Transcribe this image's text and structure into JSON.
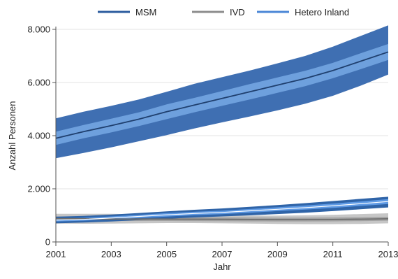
{
  "chart_data": {
    "type": "area",
    "xlabel": "Jahr",
    "ylabel": "Anzahl Personen",
    "xlim": [
      2001,
      2013
    ],
    "ylim": [
      0,
      8000
    ],
    "x_ticks": [
      {
        "value": 2001,
        "label": "2001"
      },
      {
        "value": 2003,
        "label": "2003"
      },
      {
        "value": 2005,
        "label": "2005"
      },
      {
        "value": 2007,
        "label": "2007"
      },
      {
        "value": 2009,
        "label": "2009"
      },
      {
        "value": 2011,
        "label": "2011"
      },
      {
        "value": 2013,
        "label": "2013"
      }
    ],
    "y_ticks": [
      {
        "value": 0,
        "label": "0"
      },
      {
        "value": 2000,
        "label": "2.000"
      },
      {
        "value": 4000,
        "label": "4.000"
      },
      {
        "value": 6000,
        "label": "6.000"
      },
      {
        "value": 8000,
        "label": "8.000"
      }
    ],
    "grid": "horizontal",
    "legend_position": "top",
    "x": [
      2001,
      2002,
      2003,
      2004,
      2005,
      2006,
      2007,
      2008,
      2009,
      2010,
      2011,
      2012,
      2013
    ],
    "series": [
      {
        "name": "MSM",
        "color": "#2b5c9e",
        "outer_band_color": "#3f6fb2",
        "inner_band_color": "#6ea0dd",
        "values": [
          3900,
          4150,
          4380,
          4620,
          4900,
          5150,
          5400,
          5650,
          5900,
          6150,
          6450,
          6800,
          7150
        ],
        "outer_lower": [
          3150,
          3350,
          3560,
          3790,
          4020,
          4270,
          4500,
          4720,
          4950,
          5200,
          5500,
          5880,
          6300
        ],
        "outer_upper": [
          4650,
          4900,
          5120,
          5360,
          5650,
          5950,
          6200,
          6450,
          6720,
          7000,
          7350,
          7750,
          8150
        ],
        "inner_lower": [
          3650,
          3900,
          4120,
          4360,
          4620,
          4880,
          5120,
          5360,
          5610,
          5860,
          6160,
          6500,
          6850
        ],
        "inner_upper": [
          4150,
          4400,
          4640,
          4880,
          5180,
          5420,
          5680,
          5940,
          6190,
          6440,
          6740,
          7100,
          7450
        ]
      },
      {
        "name": "IVD",
        "color": "#8c8c8c",
        "outer_band_color": "#b3b3b3",
        "inner_band_color": "#9c9c9c",
        "values": [
          880,
          870,
          860,
          860,
          860,
          855,
          850,
          845,
          840,
          840,
          845,
          855,
          870
        ],
        "outer_lower": [
          690,
          685,
          690,
          700,
          710,
          710,
          700,
          690,
          680,
          670,
          670,
          680,
          700
        ],
        "outer_upper": [
          1060,
          1060,
          1060,
          1040,
          1020,
          1010,
          1000,
          990,
          990,
          1000,
          1020,
          1050,
          1080
        ],
        "inner_lower": [
          800,
          795,
          790,
          790,
          790,
          785,
          780,
          775,
          770,
          770,
          775,
          785,
          800
        ],
        "inner_upper": [
          960,
          950,
          940,
          935,
          935,
          930,
          925,
          920,
          915,
          915,
          920,
          930,
          945
        ]
      },
      {
        "name": "Hetero Inland",
        "color": "#4a86d6",
        "outer_band_color": "#2f64a8",
        "inner_band_color": "#5f9ae4",
        "values": [
          820,
          850,
          900,
          960,
          1020,
          1070,
          1110,
          1170,
          1230,
          1290,
          1360,
          1440,
          1520
        ],
        "outer_lower": [
          700,
          730,
          770,
          820,
          870,
          920,
          960,
          1000,
          1050,
          1100,
          1160,
          1230,
          1300
        ],
        "outer_upper": [
          950,
          980,
          1030,
          1090,
          1150,
          1210,
          1260,
          1320,
          1390,
          1460,
          1540,
          1620,
          1700
        ],
        "inner_lower": [
          770,
          800,
          845,
          900,
          955,
          1005,
          1045,
          1100,
          1160,
          1215,
          1280,
          1355,
          1430
        ],
        "inner_upper": [
          880,
          905,
          960,
          1020,
          1085,
          1135,
          1180,
          1240,
          1305,
          1370,
          1445,
          1525,
          1610
        ]
      }
    ]
  }
}
